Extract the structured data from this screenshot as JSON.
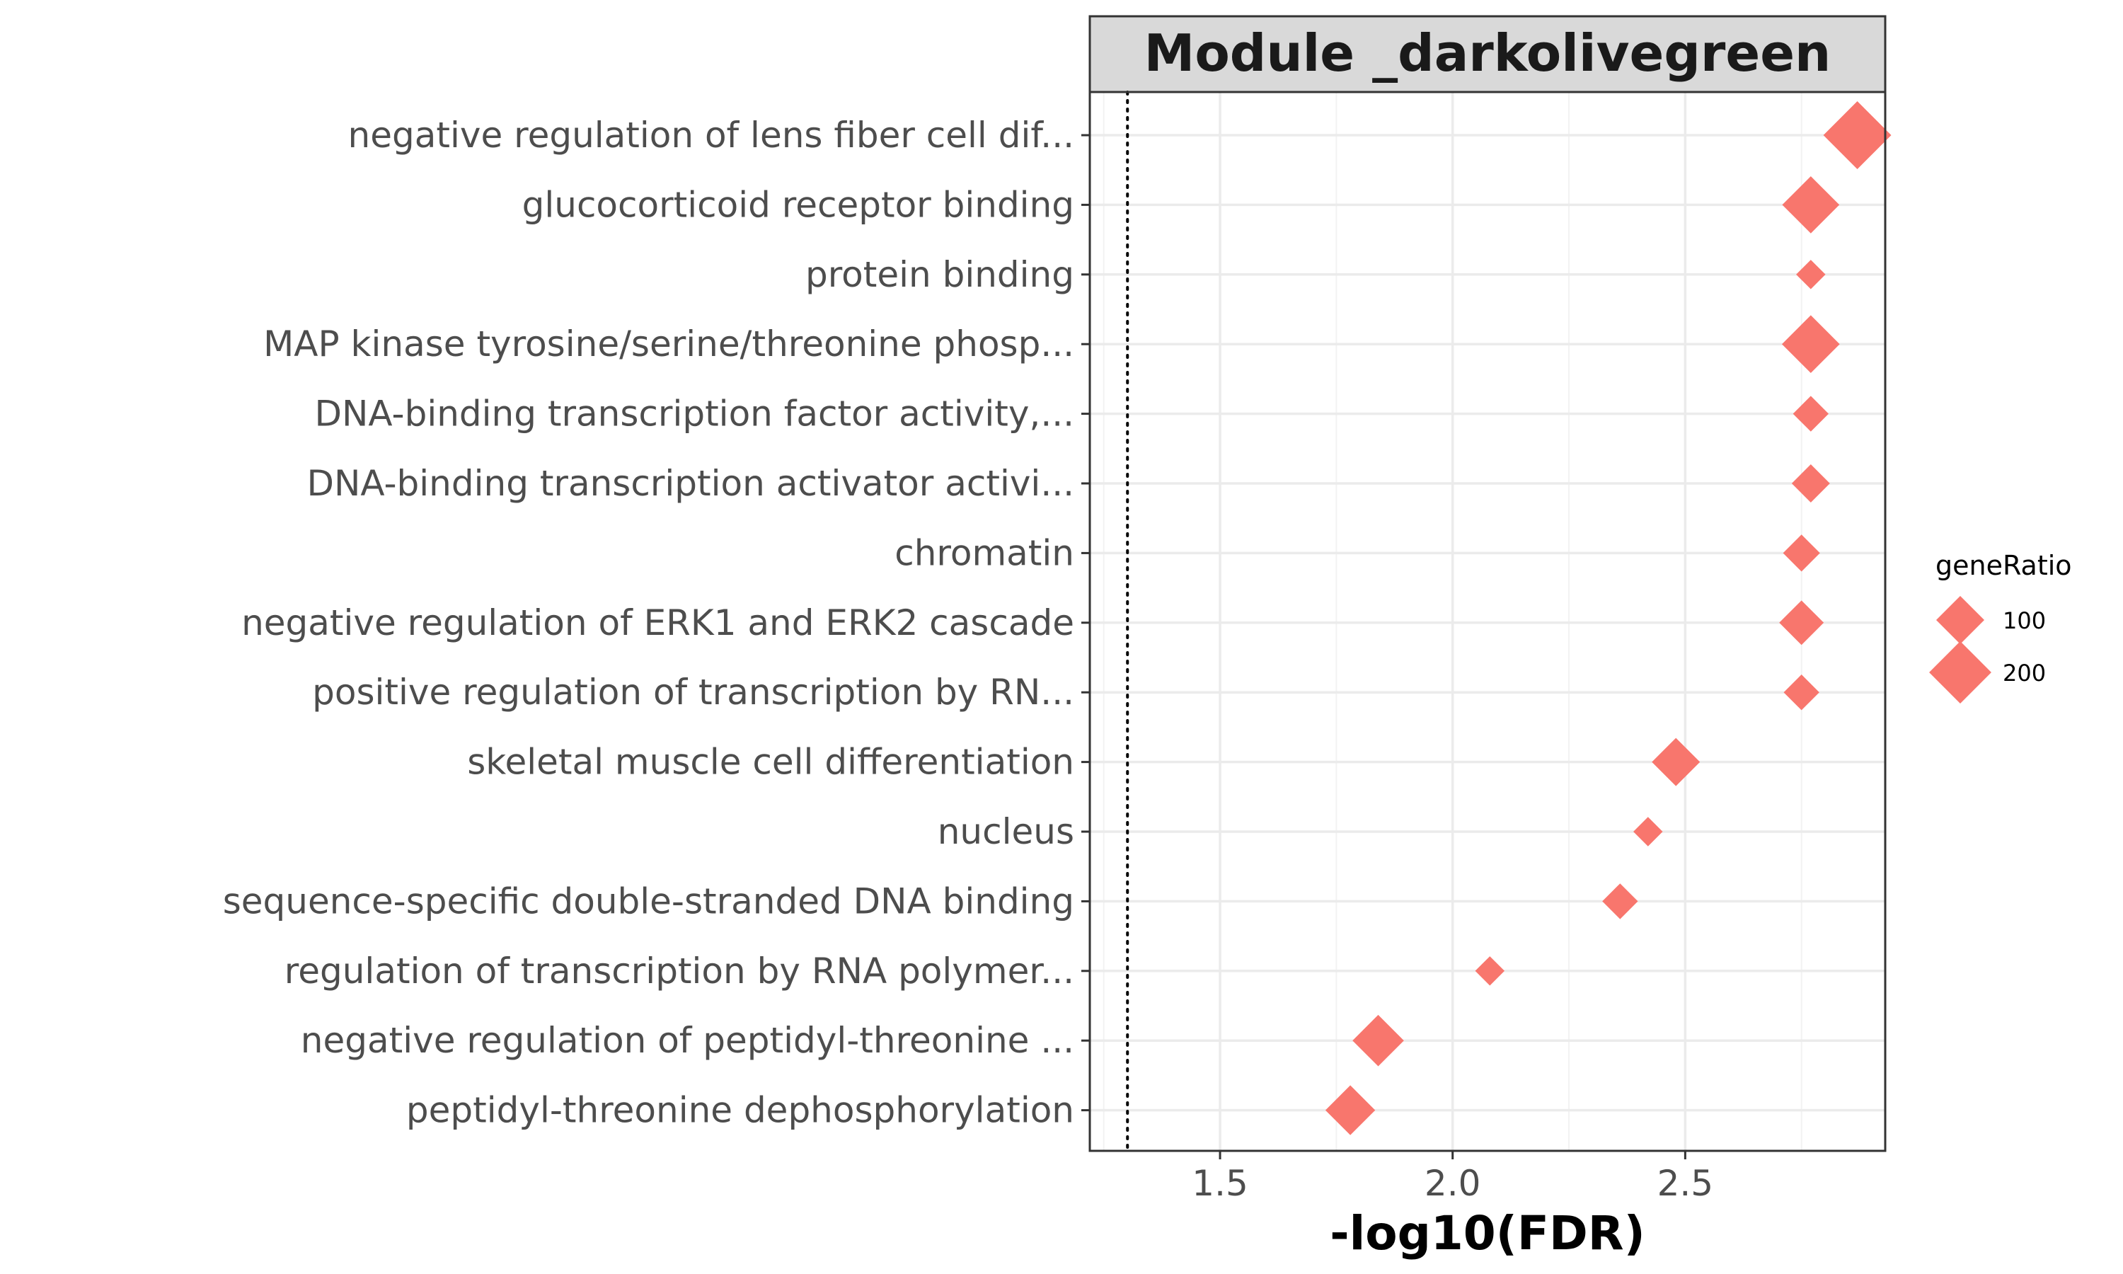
{
  "chart_data": {
    "type": "scatter",
    "title": "Module _darkolivegreen",
    "xlabel": "-log10(FDR)",
    "ylabel": "",
    "xlim": [
      1.22,
      2.93
    ],
    "x_ticks": [
      1.5,
      2.0,
      2.5
    ],
    "x_tick_labels": [
      "1.5",
      "2.0",
      "2.5"
    ],
    "reference_line": {
      "x": 1.301,
      "style": "dotted"
    },
    "grid": true,
    "marker": "diamond",
    "point_color": "#F8766D",
    "categories": [
      "negative regulation of lens fiber cell dif...",
      "glucocorticoid receptor binding",
      "protein binding",
      "MAP kinase tyrosine/serine/threonine phosp...",
      "DNA-binding transcription factor activity,...",
      "DNA-binding transcription activator activi...",
      "chromatin",
      "negative regulation of ERK1 and ERK2 cascade",
      "positive regulation of transcription by RN...",
      "skeletal muscle cell differentiation",
      "nucleus",
      "sequence-specific double-stranded DNA binding",
      "regulation of transcription by RNA polymer...",
      "negative regulation of peptidyl-threonine ...",
      "peptidyl-threonine dephosphorylation"
    ],
    "x": [
      2.87,
      2.77,
      2.77,
      2.77,
      2.77,
      2.77,
      2.75,
      2.75,
      2.75,
      2.48,
      2.42,
      2.36,
      2.08,
      1.84,
      1.78
    ],
    "geneRatio": [
      250,
      160,
      20,
      165,
      40,
      50,
      45,
      80,
      40,
      100,
      20,
      40,
      20,
      120,
      110
    ],
    "legend": {
      "title": "geneRatio",
      "position": "right",
      "entries": [
        {
          "label": "100",
          "value": 100
        },
        {
          "label": "200",
          "value": 200
        }
      ]
    }
  },
  "colors": {
    "point": "#F8766D",
    "strip_bg": "#d9d9d9",
    "grid": "#ebebeb",
    "panel_border": "#333333"
  }
}
